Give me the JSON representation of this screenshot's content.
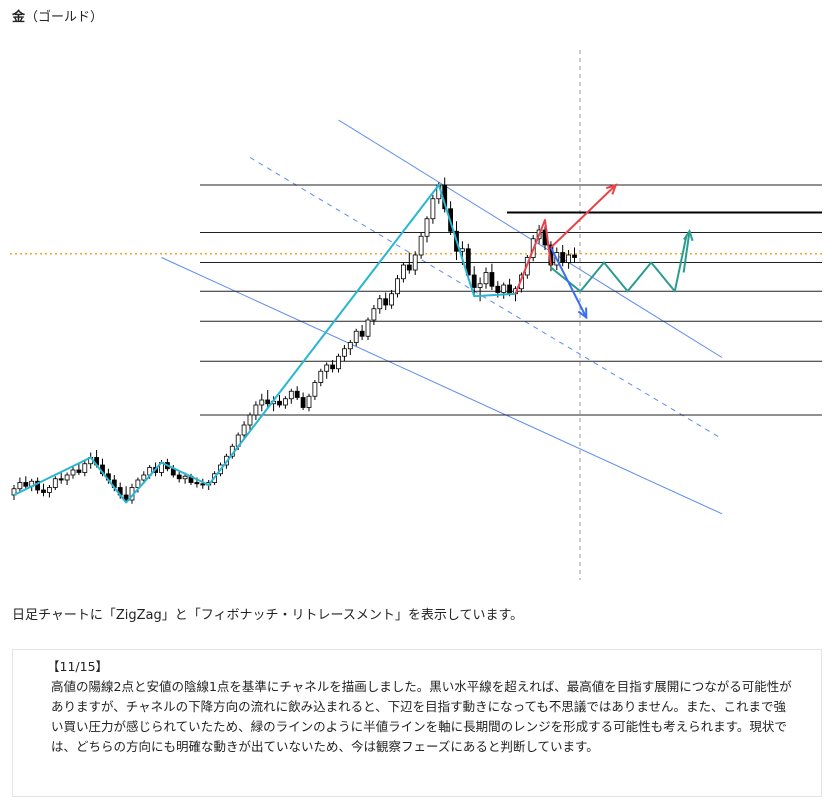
{
  "header": {
    "title": "金",
    "subtitle": "（ゴールド）"
  },
  "caption": "日足チャートに「ZigZag」と「フィボナッチ・リトレースメント」を表示しています。",
  "note": {
    "date": "【11/15】",
    "body": "高値の陽線2点と安値の陰線1点を基準にチャネルを描画しました。黒い水平線を超えれば、最高値を目指す展開につながる可能性がありますが、チャネルの下降方向の流れに飲み込まれると、下辺を目指す動きになっても不思議ではありません。また、これまで強い買い圧力が感じられていたため、緑のラインのように半値ラインを軸に長期間のレンジを形成する可能性も考えられます。現状では、どちらの方向にも明確な動きが出ていないため、今は観察フェーズにあると判断しています。"
  },
  "colors": {
    "channel": "#5b8def",
    "zigzag": "#29b6d2",
    "current_price": "#f5a623",
    "fib_lines": "#222222",
    "up_arrow": "#e8434a",
    "down_arrow": "#3a6ff0",
    "range_path": "#2a9d8f",
    "candle_up": "#ffffff",
    "candle_down": "#000000"
  },
  "chart_data": {
    "type": "candlestick",
    "title": "",
    "grid": false,
    "legend": "none",
    "candles": [
      [
        100.0,
        100.8,
        99.6,
        100.5
      ],
      [
        100.5,
        101.4,
        100.2,
        101.0
      ],
      [
        101.0,
        101.5,
        100.4,
        100.7
      ],
      [
        100.7,
        101.3,
        100.3,
        101.1
      ],
      [
        101.1,
        101.4,
        100.1,
        100.4
      ],
      [
        100.4,
        100.9,
        99.9,
        100.2
      ],
      [
        100.2,
        100.8,
        99.8,
        100.6
      ],
      [
        100.6,
        101.5,
        100.4,
        101.3
      ],
      [
        101.3,
        101.9,
        100.9,
        101.2
      ],
      [
        101.2,
        101.8,
        100.8,
        101.6
      ],
      [
        101.6,
        102.3,
        101.3,
        102.0
      ],
      [
        102.0,
        102.6,
        101.6,
        101.8
      ],
      [
        101.8,
        102.8,
        101.5,
        102.5
      ],
      [
        102.5,
        103.4,
        102.1,
        103.0
      ],
      [
        103.0,
        103.6,
        102.2,
        102.4
      ],
      [
        102.4,
        102.9,
        101.5,
        101.7
      ],
      [
        101.7,
        102.1,
        100.9,
        101.2
      ],
      [
        101.2,
        101.6,
        100.3,
        100.6
      ],
      [
        100.6,
        101.0,
        99.7,
        100.0
      ],
      [
        100.0,
        100.7,
        99.4,
        99.6
      ],
      [
        99.6,
        100.9,
        99.3,
        100.6
      ],
      [
        100.6,
        101.4,
        100.2,
        101.2
      ],
      [
        101.2,
        101.9,
        100.9,
        101.6
      ],
      [
        101.6,
        102.4,
        101.3,
        102.2
      ],
      [
        102.2,
        102.6,
        101.5,
        101.8
      ],
      [
        101.8,
        102.8,
        101.5,
        102.6
      ],
      [
        102.6,
        102.9,
        101.9,
        102.1
      ],
      [
        102.1,
        102.4,
        101.4,
        101.6
      ],
      [
        101.6,
        101.9,
        101.0,
        101.3
      ],
      [
        101.3,
        101.8,
        100.9,
        101.5
      ],
      [
        101.5,
        101.7,
        100.8,
        101.0
      ],
      [
        101.0,
        101.4,
        100.6,
        100.9
      ],
      [
        100.9,
        101.3,
        100.5,
        100.8
      ],
      [
        100.8,
        101.2,
        100.4,
        101.0
      ],
      [
        101.0,
        101.9,
        100.8,
        101.7
      ],
      [
        101.7,
        102.6,
        101.5,
        102.4
      ],
      [
        102.4,
        103.3,
        102.1,
        103.1
      ],
      [
        103.1,
        104.1,
        102.9,
        103.9
      ],
      [
        103.9,
        105.0,
        103.6,
        104.8
      ],
      [
        104.8,
        105.9,
        104.4,
        105.6
      ],
      [
        105.6,
        106.6,
        105.2,
        106.4
      ],
      [
        106.4,
        107.5,
        106.0,
        107.2
      ],
      [
        107.2,
        108.1,
        106.7,
        107.6
      ],
      [
        107.6,
        108.4,
        107.0,
        107.3
      ],
      [
        107.3,
        107.9,
        106.7,
        107.5
      ],
      [
        107.5,
        108.0,
        107.0,
        107.2
      ],
      [
        107.2,
        107.9,
        106.9,
        107.7
      ],
      [
        107.7,
        108.5,
        107.3,
        108.3
      ],
      [
        108.3,
        108.7,
        107.6,
        107.8
      ],
      [
        107.8,
        108.2,
        106.8,
        107.0
      ],
      [
        107.0,
        108.1,
        106.7,
        107.9
      ],
      [
        107.9,
        109.2,
        107.6,
        109.0
      ],
      [
        109.0,
        110.1,
        108.7,
        109.9
      ],
      [
        109.9,
        110.6,
        109.3,
        110.4
      ],
      [
        110.4,
        110.8,
        109.8,
        110.1
      ],
      [
        110.1,
        111.3,
        109.8,
        111.1
      ],
      [
        111.1,
        112.0,
        110.7,
        111.7
      ],
      [
        111.7,
        112.4,
        111.2,
        112.2
      ],
      [
        112.2,
        113.3,
        111.9,
        113.1
      ],
      [
        113.1,
        113.6,
        112.4,
        112.7
      ],
      [
        112.7,
        114.2,
        112.4,
        114.0
      ],
      [
        114.0,
        115.2,
        113.6,
        114.9
      ],
      [
        114.9,
        116.0,
        114.5,
        115.7
      ],
      [
        115.7,
        116.2,
        114.8,
        115.2
      ],
      [
        115.2,
        116.4,
        114.9,
        116.1
      ],
      [
        116.1,
        117.6,
        115.8,
        117.3
      ],
      [
        117.3,
        118.6,
        117.0,
        118.4
      ],
      [
        118.4,
        119.4,
        117.7,
        118.0
      ],
      [
        118.0,
        119.5,
        117.6,
        119.2
      ],
      [
        119.2,
        121.0,
        118.9,
        120.7
      ],
      [
        120.7,
        122.3,
        120.2,
        122.1
      ],
      [
        122.1,
        124.0,
        121.7,
        123.7
      ],
      [
        123.7,
        125.0,
        123.3,
        124.8
      ],
      [
        124.8,
        125.4,
        122.6,
        122.9
      ],
      [
        122.9,
        123.5,
        120.8,
        121.1
      ],
      [
        121.1,
        121.9,
        118.8,
        119.5
      ],
      [
        119.5,
        120.3,
        118.4,
        119.7
      ],
      [
        119.7,
        120.1,
        117.2,
        117.6
      ],
      [
        117.6,
        118.3,
        115.9,
        116.6
      ],
      [
        116.6,
        117.4,
        115.5,
        116.9
      ],
      [
        116.9,
        118.2,
        116.5,
        117.8
      ],
      [
        117.8,
        118.5,
        116.4,
        116.7
      ],
      [
        116.7,
        117.1,
        115.8,
        116.2
      ],
      [
        116.2,
        117.0,
        115.7,
        116.8
      ],
      [
        116.8,
        117.3,
        115.9,
        116.1
      ],
      [
        116.1,
        116.7,
        115.5,
        116.5
      ],
      [
        116.5,
        117.8,
        116.2,
        117.6
      ],
      [
        117.6,
        119.2,
        117.3,
        119.0
      ],
      [
        119.0,
        120.8,
        118.7,
        120.5
      ],
      [
        120.5,
        121.6,
        120.1,
        121.2
      ],
      [
        121.2,
        121.5,
        119.6,
        120.0
      ],
      [
        120.0,
        120.3,
        117.9,
        118.4
      ],
      [
        118.4,
        119.8,
        118.0,
        119.4
      ],
      [
        119.4,
        120.0,
        118.3,
        118.6
      ],
      [
        118.6,
        119.6,
        118.1,
        119.2
      ],
      [
        119.2,
        119.8,
        118.6,
        119.0
      ]
    ],
    "fibonacci_levels": [
      124.8,
      121.0,
      118.6,
      116.3,
      113.9,
      110.7,
      106.4
    ],
    "resistance_level": 122.6,
    "current_price": 119.3,
    "zigzag": [
      [
        0,
        100.0
      ],
      [
        13,
        103.0
      ],
      [
        19,
        99.4
      ],
      [
        25,
        102.6
      ],
      [
        33,
        100.8
      ],
      [
        72,
        124.8
      ],
      [
        78,
        115.9
      ],
      [
        85,
        116.1
      ],
      [
        90,
        122.0
      ],
      [
        91,
        118.4
      ]
    ],
    "channel": {
      "upper": [
        [
          55,
          130.0
        ],
        [
          120,
          111.0
        ]
      ],
      "middle": [
        [
          40,
          127.0
        ],
        [
          120,
          104.5
        ]
      ],
      "lower": [
        [
          25,
          119.0
        ],
        [
          120,
          98.5
        ]
      ]
    },
    "scenario_up": [
      [
        91,
        119.8
      ],
      [
        102,
        124.8
      ]
    ],
    "scenario_down": [
      [
        91,
        119.8
      ],
      [
        97,
        114.2
      ]
    ],
    "scenario_range": [
      [
        91,
        118.2
      ],
      [
        96,
        116.3
      ],
      [
        100,
        118.6
      ],
      [
        104,
        116.3
      ],
      [
        108,
        118.6
      ],
      [
        112,
        116.3
      ],
      [
        114,
        120.8
      ]
    ]
  }
}
